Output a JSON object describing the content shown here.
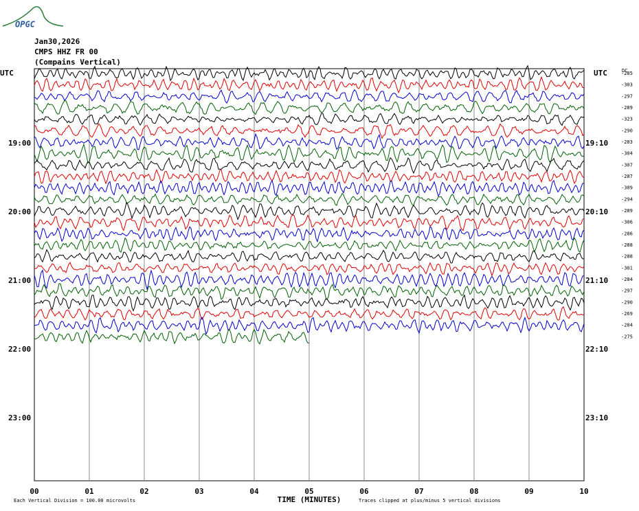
{
  "header": {
    "logo": "OPGC",
    "date": "Jan30,2026",
    "station": "CMPS HHZ FR 00",
    "component": "(Compains Vertical)"
  },
  "left_labels": [
    "UTC",
    "19:00",
    "20:00",
    "21:00",
    "22:00",
    "23:00"
  ],
  "right_labels": [
    "UTC",
    "19:10",
    "20:10",
    "21:10",
    "22:10",
    "23:10"
  ],
  "dc_label": "DC",
  "dc_offsets": [
    "-285",
    "-303",
    "-297",
    "-289",
    "-323",
    "-290",
    "-283",
    "-304",
    "-307",
    "-287",
    "-309",
    "-294",
    "-289",
    "-306",
    "-286",
    "-288",
    "-288",
    "-301",
    "-284",
    "-297",
    "-290",
    "-269",
    "-284",
    "-275"
  ],
  "trace_colors": [
    "#000000",
    "#e00000",
    "#0000d0",
    "#006000"
  ],
  "x_ticks": [
    "00",
    "01",
    "02",
    "03",
    "04",
    "05",
    "06",
    "07",
    "08",
    "09",
    "10"
  ],
  "x_axis_title": "TIME (MINUTES)",
  "footer": {
    "scale": "Each Vertical Division =  100.00 microvolts",
    "clip": "Traces clipped at plus/minus 5 vertical divisions"
  }
}
